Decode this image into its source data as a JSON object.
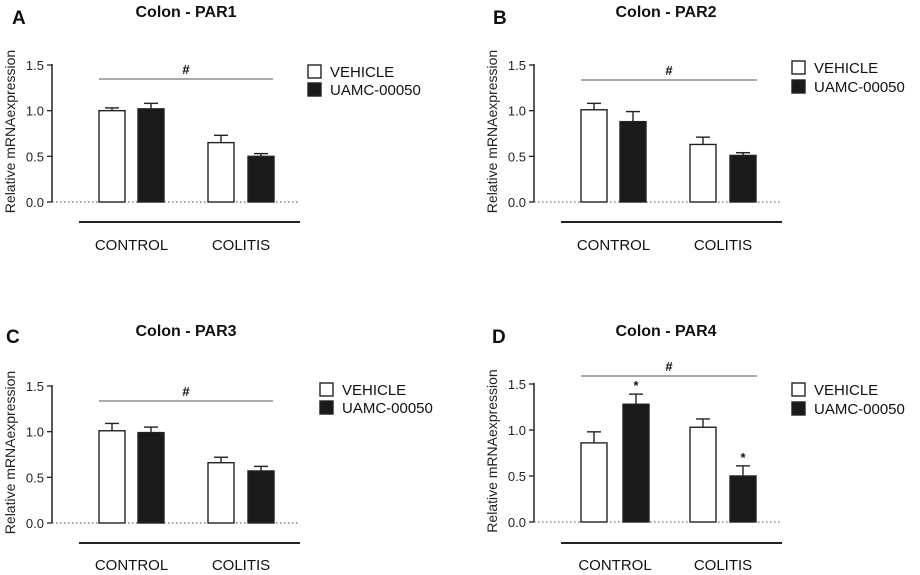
{
  "chart_data": [
    {
      "type": "bar",
      "panel": "A",
      "title": "Colon - PAR1",
      "ylabel": "Relative mRNAexpression",
      "xlabel": "",
      "categories": [
        "CONTROL",
        "COLITIS"
      ],
      "ylim": [
        0,
        1.5
      ],
      "yticks": [
        "0.0",
        "0.5",
        "1.0",
        "1.5"
      ],
      "series": [
        {
          "name": "VEHICLE",
          "fill": "#ffffff",
          "values": [
            1.0,
            0.65
          ],
          "errors": [
            0.03,
            0.08
          ],
          "markers": [
            "",
            ""
          ]
        },
        {
          "name": "UAMC-00050",
          "fill": "#1a1a1a",
          "values": [
            1.02,
            0.5
          ],
          "errors": [
            0.06,
            0.03
          ],
          "markers": [
            "",
            ""
          ]
        }
      ],
      "group_marker": "#",
      "legend_position": "right"
    },
    {
      "type": "bar",
      "panel": "B",
      "title": "Colon - PAR2",
      "ylabel": "Relative mRNAexpression",
      "xlabel": "",
      "categories": [
        "CONTROL",
        "COLITIS"
      ],
      "ylim": [
        0,
        1.5
      ],
      "yticks": [
        "0.0",
        "0.5",
        "1.0",
        "1.5"
      ],
      "series": [
        {
          "name": "VEHICLE",
          "fill": "#ffffff",
          "values": [
            1.01,
            0.63
          ],
          "errors": [
            0.07,
            0.08
          ],
          "markers": [
            "",
            ""
          ]
        },
        {
          "name": "UAMC-00050",
          "fill": "#1a1a1a",
          "values": [
            0.88,
            0.51
          ],
          "errors": [
            0.11,
            0.03
          ],
          "markers": [
            "",
            ""
          ]
        }
      ],
      "group_marker": "#",
      "legend_position": "right"
    },
    {
      "type": "bar",
      "panel": "C",
      "title": "Colon - PAR3",
      "ylabel": "Relative mRNAexpression",
      "xlabel": "",
      "categories": [
        "CONTROL",
        "COLITIS"
      ],
      "ylim": [
        0,
        1.5
      ],
      "yticks": [
        "0.0",
        "0.5",
        "1.0",
        "1.5"
      ],
      "series": [
        {
          "name": "VEHICLE",
          "fill": "#ffffff",
          "values": [
            1.01,
            0.66
          ],
          "errors": [
            0.08,
            0.06
          ],
          "markers": [
            "",
            ""
          ]
        },
        {
          "name": "UAMC-00050",
          "fill": "#1a1a1a",
          "values": [
            0.99,
            0.57
          ],
          "errors": [
            0.06,
            0.05
          ],
          "markers": [
            "",
            ""
          ]
        }
      ],
      "group_marker": "#",
      "legend_position": "right"
    },
    {
      "type": "bar",
      "panel": "D",
      "title": "Colon - PAR4",
      "ylabel": "Relative mRNAexpression",
      "xlabel": "",
      "categories": [
        "CONTROL",
        "COLITIS"
      ],
      "ylim": [
        0,
        1.5
      ],
      "yticks": [
        "0.0",
        "0.5",
        "1.0",
        "1.5"
      ],
      "series": [
        {
          "name": "VEHICLE",
          "fill": "#ffffff",
          "values": [
            0.86,
            1.03
          ],
          "errors": [
            0.12,
            0.09
          ],
          "markers": [
            "",
            ""
          ]
        },
        {
          "name": "UAMC-00050",
          "fill": "#1a1a1a",
          "values": [
            1.28,
            0.5
          ],
          "errors": [
            0.11,
            0.11
          ],
          "markers": [
            "*",
            "*"
          ]
        }
      ],
      "group_marker": "#",
      "legend_position": "right"
    }
  ]
}
